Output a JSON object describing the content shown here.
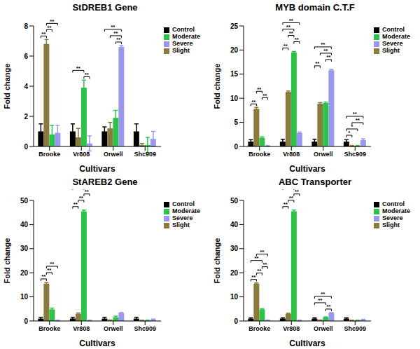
{
  "chart_data": [
    {
      "type": "bar",
      "title": "StDREB1 Gene",
      "x_label": "Cultivars",
      "y_label": "Fold change",
      "categories": [
        "Brooke",
        "Vr808",
        "Orwell",
        "Shc909"
      ],
      "series": [
        {
          "name": "Control",
          "color": "#000000",
          "values": [
            1,
            1,
            1,
            1
          ],
          "errors": [
            0.5,
            0.5,
            0.3,
            0.5
          ]
        },
        {
          "name": "Slight",
          "color": "#8a7a3d",
          "values": [
            6.8,
            0.6,
            1.2,
            0.1
          ],
          "errors": [
            0.3,
            0.6,
            0.4,
            0.1
          ]
        },
        {
          "name": "Moderate",
          "color": "#2ec24a",
          "values": [
            0.8,
            3.9,
            1.9,
            0.1
          ],
          "errors": [
            0.6,
            0.5,
            0.5,
            0.5
          ]
        },
        {
          "name": "Severe",
          "color": "#9898f0",
          "values": [
            0.9,
            0.2,
            6.6,
            0.5
          ],
          "errors": [
            0.5,
            0.5,
            0.1,
            0.5
          ]
        }
      ],
      "ylim": [
        0,
        8
      ],
      "yticks": [
        0,
        2,
        4,
        6,
        8
      ],
      "legend": "right",
      "annotations": [
        {
          "category": "Brooke",
          "from": "Control",
          "to": "Slight",
          "label": "**"
        },
        {
          "category": "Brooke",
          "from": "Slight",
          "to": "Moderate",
          "label": "**"
        },
        {
          "category": "Brooke",
          "from": "Slight",
          "to": "Severe",
          "label": "**"
        },
        {
          "category": "Vr808",
          "from": "Moderate",
          "to": "Severe",
          "label": "**"
        },
        {
          "category": "Vr808",
          "from": "Control",
          "to": "Moderate",
          "label": "**"
        },
        {
          "category": "Orwell",
          "from": "Moderate",
          "to": "Severe",
          "label": "**"
        },
        {
          "category": "Orwell",
          "from": "Slight",
          "to": "Severe",
          "label": "**"
        },
        {
          "category": "Orwell",
          "from": "Control",
          "to": "Severe",
          "label": "**"
        }
      ]
    },
    {
      "type": "bar",
      "title": "MYB domain C.T.F",
      "x_label": "Cultivars",
      "y_label": "Fold change",
      "categories": [
        "Brooke",
        "Vr808",
        "Orwell",
        "Shc909"
      ],
      "series": [
        {
          "name": "Control",
          "color": "#000000",
          "values": [
            1,
            1,
            1,
            1
          ],
          "errors": [
            0.4,
            0.5,
            0.5,
            0.4
          ]
        },
        {
          "name": "Slight",
          "color": "#8a7a3d",
          "values": [
            7.8,
            11.3,
            8.9,
            0.1
          ],
          "errors": [
            0.3,
            0.2,
            0.2,
            0.1
          ]
        },
        {
          "name": "Moderate",
          "color": "#2ec24a",
          "values": [
            1.8,
            19.5,
            9,
            0.1
          ],
          "errors": [
            0.2,
            0.2,
            0.2,
            0.1
          ]
        },
        {
          "name": "Severe",
          "color": "#9898f0",
          "values": [
            0.1,
            2.8,
            15.8,
            1.3
          ],
          "errors": [
            0.1,
            0.2,
            0.2,
            0.3
          ]
        }
      ],
      "ylim": [
        0,
        25
      ],
      "yticks": [
        0,
        5,
        10,
        15,
        20,
        25
      ],
      "legend": "right",
      "annotations": [
        {
          "category": "Brooke",
          "from": "Control",
          "to": "Slight",
          "label": "**"
        },
        {
          "category": "Brooke",
          "from": "Moderate",
          "to": "Severe",
          "label": "**"
        },
        {
          "category": "Brooke",
          "from": "Slight",
          "to": "Moderate",
          "label": "**"
        },
        {
          "category": "Vr808",
          "from": "Control",
          "to": "Slight",
          "label": "**"
        },
        {
          "category": "Vr808",
          "from": "Moderate",
          "to": "Severe",
          "label": "**"
        },
        {
          "category": "Vr808",
          "from": "Slight",
          "to": "Moderate",
          "label": "**"
        },
        {
          "category": "Vr808",
          "from": "Control",
          "to": "Moderate",
          "label": "**"
        },
        {
          "category": "Vr808",
          "from": "Control",
          "to": "Severe",
          "label": "**"
        },
        {
          "category": "Orwell",
          "from": "Control",
          "to": "Slight",
          "label": "**"
        },
        {
          "category": "Orwell",
          "from": "Moderate",
          "to": "Severe",
          "label": "**"
        },
        {
          "category": "Orwell",
          "from": "Slight",
          "to": "Severe",
          "label": "**"
        },
        {
          "category": "Orwell",
          "from": "Control",
          "to": "Severe",
          "label": "**"
        },
        {
          "category": "Shc909",
          "from": "Control",
          "to": "Slight",
          "label": "*"
        },
        {
          "category": "Shc909",
          "from": "Control",
          "to": "Moderate",
          "label": "*"
        },
        {
          "category": "Shc909",
          "from": "Slight",
          "to": "Severe",
          "label": "**"
        },
        {
          "category": "Shc909",
          "from": "Control",
          "to": "Severe",
          "label": "**"
        }
      ]
    },
    {
      "type": "bar",
      "title": "StAREB2 Gene",
      "x_label": "Cultivars",
      "y_label": "Fold change",
      "categories": [
        "Brooke",
        "Vr808",
        "Orwell",
        "Shc909"
      ],
      "series": [
        {
          "name": "Control",
          "color": "#000000",
          "values": [
            1,
            1,
            1,
            1
          ],
          "errors": [
            0.5,
            0.5,
            0.5,
            0.5
          ]
        },
        {
          "name": "Slight",
          "color": "#8a7a3d",
          "values": [
            15.5,
            3,
            0.3,
            0.2
          ],
          "errors": [
            0.5,
            0.3,
            0.1,
            0.1
          ]
        },
        {
          "name": "Moderate",
          "color": "#2ec24a",
          "values": [
            4.8,
            45.5,
            1.5,
            0.2
          ],
          "errors": [
            0.5,
            0.5,
            0.5,
            0.1
          ]
        },
        {
          "name": "Severe",
          "color": "#9898f0",
          "values": [
            0.2,
            0.2,
            3.3,
            0.5
          ],
          "errors": [
            0.1,
            0.1,
            0.3,
            0.3
          ]
        }
      ],
      "ylim": [
        0,
        50
      ],
      "yticks": [
        0,
        10,
        20,
        30,
        40,
        50
      ],
      "legend": "right",
      "annotations": [
        {
          "category": "Brooke",
          "from": "Control",
          "to": "Slight",
          "label": "**"
        },
        {
          "category": "Brooke",
          "from": "Slight",
          "to": "Moderate",
          "label": "**"
        },
        {
          "category": "Brooke",
          "from": "Slight",
          "to": "Severe",
          "label": "**"
        },
        {
          "category": "Vr808",
          "from": "Control",
          "to": "Slight",
          "label": "**"
        },
        {
          "category": "Vr808",
          "from": "Slight",
          "to": "Moderate",
          "label": "**"
        },
        {
          "category": "Vr808",
          "from": "Moderate",
          "to": "Severe",
          "label": "**"
        },
        {
          "category": "Vr808",
          "from": "Control",
          "to": "Moderate",
          "label": "**"
        }
      ]
    },
    {
      "type": "bar",
      "title": "ABC Transporter",
      "x_label": "Cultivars",
      "y_label": "Fold change",
      "categories": [
        "Brooke",
        "Vr808",
        "Orwell",
        "Shc909"
      ],
      "series": [
        {
          "name": "Control",
          "color": "#000000",
          "values": [
            1,
            1,
            1,
            1
          ],
          "errors": [
            0.3,
            0.3,
            0.3,
            0.3
          ]
        },
        {
          "name": "Slight",
          "color": "#8a7a3d",
          "values": [
            15.5,
            3,
            0.3,
            0.2
          ],
          "errors": [
            0.3,
            0.2,
            0.1,
            0.1
          ]
        },
        {
          "name": "Moderate",
          "color": "#2ec24a",
          "values": [
            4.8,
            45.5,
            1.5,
            0.2
          ],
          "errors": [
            0.3,
            0.5,
            0.2,
            0.1
          ]
        },
        {
          "name": "Severe",
          "color": "#9898f0",
          "values": [
            0.3,
            0.2,
            3.3,
            0.5
          ],
          "errors": [
            0.1,
            0.1,
            0.2,
            0.2
          ]
        }
      ],
      "ylim": [
        0,
        50
      ],
      "yticks": [
        0,
        10,
        20,
        30,
        40,
        50
      ],
      "legend": "right",
      "annotations": [
        {
          "category": "Brooke",
          "from": "Control",
          "to": "Slight",
          "label": "**"
        },
        {
          "category": "Brooke",
          "from": "Slight",
          "to": "Moderate",
          "label": "**"
        },
        {
          "category": "Brooke",
          "from": "Moderate",
          "to": "Severe",
          "label": "**"
        },
        {
          "category": "Brooke",
          "from": "Control",
          "to": "Moderate",
          "label": "**"
        },
        {
          "category": "Brooke",
          "from": "Slight",
          "to": "Severe",
          "label": "**"
        },
        {
          "category": "Vr808",
          "from": "Control",
          "to": "Slight",
          "label": "**"
        },
        {
          "category": "Vr808",
          "from": "Slight",
          "to": "Moderate",
          "label": "**"
        },
        {
          "category": "Vr808",
          "from": "Moderate",
          "to": "Severe",
          "label": "**"
        },
        {
          "category": "Vr808",
          "from": "Control",
          "to": "Moderate",
          "label": "**"
        },
        {
          "category": "Vr808",
          "from": "Control",
          "to": "Severe",
          "label": "**"
        },
        {
          "category": "Orwell",
          "from": "Moderate",
          "to": "Severe",
          "label": "**"
        },
        {
          "category": "Orwell",
          "from": "Control",
          "to": "Moderate",
          "label": "**"
        },
        {
          "category": "Orwell",
          "from": "Control",
          "to": "Severe",
          "label": "**"
        }
      ]
    }
  ]
}
